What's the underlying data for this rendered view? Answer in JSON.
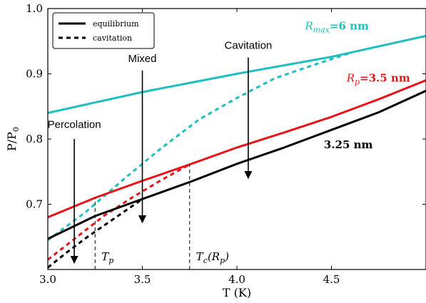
{
  "chart_data": {
    "type": "line",
    "xlabel": "T (K)",
    "ylabel": "P/P",
    "ylabel_subscript": "0",
    "xlim": [
      3.0,
      5.0
    ],
    "ylim": [
      0.6,
      1.0
    ],
    "xticks": [
      "3.0",
      "3.5",
      "4.0",
      "4.5"
    ],
    "yticks": [
      "0.7",
      "0.8",
      "0.9",
      "1.0"
    ],
    "xtick_values": [
      3.0,
      3.5,
      4.0,
      4.5
    ],
    "ytick_values": [
      0.7,
      0.8,
      0.9,
      1.0
    ],
    "legend": {
      "position": "top-left",
      "entries": [
        {
          "label": "equilibrium",
          "style": "solid"
        },
        {
          "label": "cavitation",
          "style": "dashed"
        }
      ]
    },
    "series": [
      {
        "label_id": "r6",
        "color": "#1fbfbf",
        "style": "solid",
        "x": [
          3.0,
          3.5,
          4.0,
          4.5,
          5.0
        ],
        "y": [
          0.84,
          0.872,
          0.9,
          0.926,
          0.958
        ]
      },
      {
        "label_id": "r6",
        "color": "#1fbfbf",
        "style": "dashed",
        "x": [
          3.0,
          3.2,
          3.4,
          3.6,
          3.8,
          4.0,
          4.2,
          4.4,
          4.6
        ],
        "y": [
          0.645,
          0.688,
          0.738,
          0.786,
          0.83,
          0.863,
          0.893,
          0.913,
          0.932
        ]
      },
      {
        "label_id": "r35",
        "color": "#e8141a",
        "style": "solid",
        "x": [
          3.0,
          3.25,
          3.5,
          3.75,
          4.0,
          4.25,
          4.5,
          4.75,
          5.0
        ],
        "y": [
          0.68,
          0.71,
          0.736,
          0.761,
          0.787,
          0.81,
          0.834,
          0.861,
          0.89
        ]
      },
      {
        "label_id": "r35",
        "color": "#e8141a",
        "style": "dashed",
        "x": [
          3.0,
          3.15,
          3.3,
          3.45,
          3.6,
          3.75
        ],
        "y": [
          0.615,
          0.649,
          0.683,
          0.711,
          0.737,
          0.761
        ]
      },
      {
        "label_id": "r325",
        "color": "#000000",
        "style": "solid",
        "x": [
          3.0,
          3.25,
          3.5,
          3.75,
          4.0,
          4.25,
          4.5,
          4.75,
          5.0
        ],
        "y": [
          0.647,
          0.682,
          0.708,
          0.734,
          0.762,
          0.787,
          0.814,
          0.841,
          0.874
        ]
      },
      {
        "label_id": "r325",
        "color": "#000000",
        "style": "dashed",
        "x": [
          3.0,
          3.1,
          3.2,
          3.3,
          3.4,
          3.5
        ],
        "y": [
          0.603,
          0.626,
          0.648,
          0.668,
          0.688,
          0.708
        ]
      }
    ],
    "curve_labels": [
      {
        "id": "r6",
        "color": "#1fbfbf",
        "prefix": "R",
        "sub": "max",
        "suffix": "=6 nm",
        "x": 4.36,
        "y": 0.968
      },
      {
        "id": "r35",
        "color": "#e8141a",
        "prefix": "R",
        "sub": "p",
        "suffix": "=3.5 nm",
        "x": 4.58,
        "y": 0.888
      },
      {
        "id": "r325",
        "color": "#000000",
        "prefix": "",
        "sub": "",
        "suffix": "3.25 nm",
        "x": 4.46,
        "y": 0.786
      }
    ],
    "annotations": [
      {
        "id": "percolation",
        "text": "Percolation",
        "x": 3.14,
        "y": 0.817,
        "arrow_from": 0.8,
        "arrow_to": 0.61
      },
      {
        "id": "mixed",
        "text": "Mixed",
        "x": 3.5,
        "y": 0.918,
        "arrow_from": 0.905,
        "arrow_to": 0.672
      },
      {
        "id": "cavitation",
        "text": "Cavitation",
        "x": 4.06,
        "y": 0.938,
        "arrow_from": 0.925,
        "arrow_to": 0.74
      }
    ],
    "vlines": [
      {
        "id": "tp",
        "x": 3.25,
        "y_to": 0.71,
        "label_prefix": "T",
        "label_sub": "p"
      },
      {
        "id": "tc",
        "x": 3.75,
        "y_to": 0.761,
        "label_prefix": "T",
        "label_sub": "c",
        "label_suffix": "(R",
        "label_sub2": "p",
        "label_end": ")"
      }
    ]
  }
}
